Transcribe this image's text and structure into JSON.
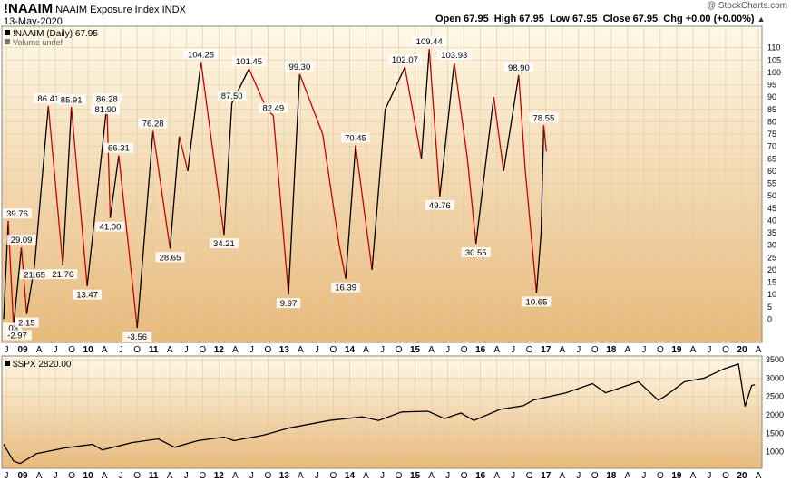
{
  "header": {
    "symbol": "!NAAIM",
    "name": "NAAIM Exposure Index",
    "exchange": "INDX",
    "date": "13-May-2020",
    "ohlc": "Open 67.95  High 67.95  Low 67.95  Close 67.95  Chg +0.00 (+0.00%)",
    "chg_arrow": "▲",
    "watermark": "@ StockCharts.com"
  },
  "colors": {
    "bg_top": "#fff8e6",
    "bg_bottom": "#e8b97a",
    "up": "#000000",
    "down": "#cc0000",
    "grid": "#d9c9a9"
  },
  "chart_data": [
    {
      "type": "line",
      "legend": "!NAAIM (Daily) 67.95",
      "volume_label": "Volume undef",
      "x_tick_labels": [
        "J",
        "09",
        "A",
        "J",
        "O",
        "10",
        "A",
        "J",
        "O",
        "11",
        "A",
        "J",
        "O",
        "12",
        "A",
        "J",
        "O",
        "13",
        "A",
        "J",
        "O",
        "14",
        "A",
        "J",
        "O",
        "15",
        "A",
        "J",
        "O",
        "16",
        "A",
        "J",
        "O",
        "17",
        "A",
        "J",
        "O",
        "18",
        "A",
        "J",
        "O",
        "19",
        "A",
        "J",
        "O",
        "20",
        "A"
      ],
      "ylim": [
        -5,
        115
      ],
      "y_ticks": [
        0,
        5,
        10,
        15,
        20,
        25,
        30,
        35,
        40,
        45,
        50,
        55,
        60,
        65,
        70,
        75,
        80,
        85,
        90,
        95,
        100,
        105,
        110
      ],
      "points": [
        [
          2008.95,
          0.03
        ],
        [
          2009.02,
          39.76
        ],
        [
          2009.1,
          -2.97
        ],
        [
          2009.22,
          29.09
        ],
        [
          2009.3,
          2.15
        ],
        [
          2009.42,
          21.65
        ],
        [
          2009.63,
          86.41
        ],
        [
          2009.85,
          21.76
        ],
        [
          2009.98,
          85.91
        ],
        [
          2010.22,
          13.47
        ],
        [
          2010.5,
          81.9
        ],
        [
          2010.52,
          86.28
        ],
        [
          2010.57,
          41.0
        ],
        [
          2010.7,
          66.31
        ],
        [
          2010.98,
          -3.56
        ],
        [
          2011.22,
          76.28
        ],
        [
          2011.48,
          28.65
        ],
        [
          2011.62,
          74.0
        ],
        [
          2011.75,
          60.0
        ],
        [
          2011.95,
          104.25
        ],
        [
          2012.3,
          34.21
        ],
        [
          2012.42,
          87.5
        ],
        [
          2012.68,
          101.45
        ],
        [
          2012.95,
          85.0
        ],
        [
          2013.05,
          82.49
        ],
        [
          2013.28,
          9.97
        ],
        [
          2013.45,
          99.3
        ],
        [
          2013.8,
          75.0
        ],
        [
          2014.05,
          30.0
        ],
        [
          2014.15,
          16.39
        ],
        [
          2014.3,
          70.45
        ],
        [
          2014.55,
          20.0
        ],
        [
          2014.75,
          85.0
        ],
        [
          2015.05,
          102.07
        ],
        [
          2015.3,
          65.0
        ],
        [
          2015.42,
          109.44
        ],
        [
          2015.58,
          49.76
        ],
        [
          2015.8,
          103.93
        ],
        [
          2016.0,
          65.0
        ],
        [
          2016.13,
          30.55
        ],
        [
          2016.4,
          90.0
        ],
        [
          2016.55,
          60.0
        ],
        [
          2016.78,
          98.9
        ],
        [
          2016.88,
          60.0
        ],
        [
          2017.05,
          10.65
        ],
        [
          2017.12,
          35.0
        ],
        [
          2017.16,
          78.55
        ],
        [
          2017.2,
          67.95
        ]
      ],
      "annotations": [
        {
          "x": 2008.95,
          "y": 0.03,
          "label": ".03",
          "pos": "below"
        },
        {
          "x": 2009.02,
          "y": 39.76,
          "label": "39.76",
          "pos": "above"
        },
        {
          "x": 2009.1,
          "y": -2.97,
          "label": "-2.97",
          "pos": "below"
        },
        {
          "x": 2009.22,
          "y": 29.09,
          "label": "29.09",
          "pos": "above"
        },
        {
          "x": 2009.3,
          "y": 2.15,
          "label": "2.15",
          "pos": "below"
        },
        {
          "x": 2009.42,
          "y": 21.65,
          "label": "21.65",
          "pos": "below"
        },
        {
          "x": 2009.63,
          "y": 86.41,
          "label": "86.41",
          "pos": "above"
        },
        {
          "x": 2009.85,
          "y": 21.76,
          "label": "21.76",
          "pos": "below"
        },
        {
          "x": 2009.98,
          "y": 85.91,
          "label": "85.91",
          "pos": "above"
        },
        {
          "x": 2010.22,
          "y": 13.47,
          "label": "13.47",
          "pos": "below"
        },
        {
          "x": 2010.5,
          "y": 81.9,
          "label": "81.90",
          "pos": "above"
        },
        {
          "x": 2010.52,
          "y": 86.28,
          "label": "86.28",
          "pos": "above"
        },
        {
          "x": 2010.57,
          "y": 41.0,
          "label": "41.00",
          "pos": "below"
        },
        {
          "x": 2010.7,
          "y": 66.31,
          "label": "66.31",
          "pos": "above"
        },
        {
          "x": 2010.98,
          "y": -3.56,
          "label": "-3.56",
          "pos": "below"
        },
        {
          "x": 2011.22,
          "y": 76.28,
          "label": "76.28",
          "pos": "above"
        },
        {
          "x": 2011.48,
          "y": 28.65,
          "label": "28.65",
          "pos": "below"
        },
        {
          "x": 2011.95,
          "y": 104.25,
          "label": "104.25",
          "pos": "above"
        },
        {
          "x": 2012.3,
          "y": 34.21,
          "label": "34.21",
          "pos": "below"
        },
        {
          "x": 2012.42,
          "y": 87.5,
          "label": "87.50",
          "pos": "above"
        },
        {
          "x": 2012.68,
          "y": 101.45,
          "label": "101.45",
          "pos": "above"
        },
        {
          "x": 2013.05,
          "y": 82.49,
          "label": "82.49",
          "pos": "above"
        },
        {
          "x": 2013.28,
          "y": 9.97,
          "label": "9.97",
          "pos": "below"
        },
        {
          "x": 2013.45,
          "y": 99.3,
          "label": "99.30",
          "pos": "above"
        },
        {
          "x": 2014.15,
          "y": 16.39,
          "label": "16.39",
          "pos": "below"
        },
        {
          "x": 2014.3,
          "y": 70.45,
          "label": "70.45",
          "pos": "above"
        },
        {
          "x": 2015.05,
          "y": 102.07,
          "label": "102.07",
          "pos": "above"
        },
        {
          "x": 2015.42,
          "y": 109.44,
          "label": "109.44",
          "pos": "above"
        },
        {
          "x": 2015.58,
          "y": 49.76,
          "label": "49.76",
          "pos": "below"
        },
        {
          "x": 2015.8,
          "y": 103.93,
          "label": "103.93",
          "pos": "above"
        },
        {
          "x": 2016.13,
          "y": 30.55,
          "label": "30.55",
          "pos": "below"
        },
        {
          "x": 2016.78,
          "y": 98.9,
          "label": "98.90",
          "pos": "above"
        },
        {
          "x": 2017.05,
          "y": 10.65,
          "label": "10.65",
          "pos": "below"
        },
        {
          "x": 2017.16,
          "y": 78.55,
          "label": "78.55",
          "pos": "above"
        }
      ]
    },
    {
      "type": "line",
      "legend": "$SPX 2820.00",
      "x_tick_labels": [
        "J",
        "09",
        "A",
        "J",
        "O",
        "10",
        "A",
        "J",
        "O",
        "11",
        "A",
        "J",
        "O",
        "12",
        "A",
        "J",
        "O",
        "13",
        "A",
        "J",
        "O",
        "14",
        "A",
        "J",
        "O",
        "15",
        "A",
        "J",
        "O",
        "16",
        "A",
        "J",
        "O",
        "17",
        "A",
        "J",
        "O",
        "18",
        "A",
        "J",
        "O",
        "19",
        "A",
        "J",
        "O",
        "20",
        "A"
      ],
      "ylim": [
        600,
        3550
      ],
      "y_ticks": [
        1000,
        1500,
        2000,
        2500,
        3000,
        3500
      ],
      "points": [
        [
          2008.95,
          1200
        ],
        [
          2009.1,
          750
        ],
        [
          2009.2,
          680
        ],
        [
          2009.45,
          950
        ],
        [
          2009.9,
          1110
        ],
        [
          2010.3,
          1200
        ],
        [
          2010.45,
          1050
        ],
        [
          2010.9,
          1250
        ],
        [
          2011.3,
          1350
        ],
        [
          2011.55,
          1120
        ],
        [
          2011.9,
          1300
        ],
        [
          2012.3,
          1400
        ],
        [
          2012.45,
          1300
        ],
        [
          2012.9,
          1450
        ],
        [
          2013.3,
          1650
        ],
        [
          2013.9,
          1850
        ],
        [
          2014.4,
          1950
        ],
        [
          2014.65,
          1850
        ],
        [
          2015.0,
          2080
        ],
        [
          2015.4,
          2100
        ],
        [
          2015.65,
          1900
        ],
        [
          2015.9,
          2050
        ],
        [
          2016.1,
          1850
        ],
        [
          2016.5,
          2150
        ],
        [
          2016.85,
          2250
        ],
        [
          2017.0,
          2400
        ],
        [
          2017.5,
          2600
        ],
        [
          2017.9,
          2850
        ],
        [
          2018.1,
          2600
        ],
        [
          2018.6,
          2900
        ],
        [
          2018.9,
          2400
        ],
        [
          2019.0,
          2500
        ],
        [
          2019.3,
          2900
        ],
        [
          2019.6,
          3000
        ],
        [
          2019.9,
          3250
        ],
        [
          2020.12,
          3380
        ],
        [
          2020.22,
          2230
        ],
        [
          2020.32,
          2800
        ],
        [
          2020.37,
          2820
        ]
      ]
    }
  ]
}
